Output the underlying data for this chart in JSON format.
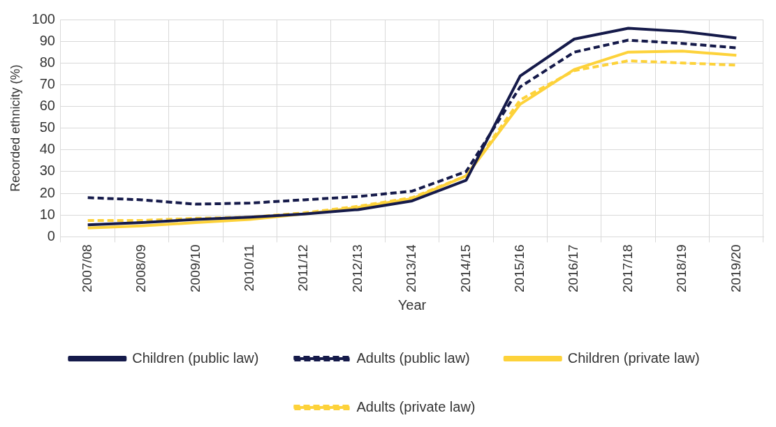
{
  "chart_data": {
    "type": "line",
    "xlabel": "Year",
    "ylabel": "Recorded ethnicity (%)",
    "categories": [
      "2007/08",
      "2008/09",
      "2009/10",
      "2010/11",
      "2011/12",
      "2012/13",
      "2013/14",
      "2014/15",
      "2015/16",
      "2016/17",
      "2017/18",
      "2018/19",
      "2019/20"
    ],
    "series": [
      {
        "name": "Children (public law)",
        "color": "#151a4a",
        "line_style": "solid",
        "values": [
          5.5,
          6.5,
          8,
          9,
          10.5,
          12.5,
          16.5,
          26,
          74,
          91,
          96,
          94.5,
          91.5
        ]
      },
      {
        "name": "Adults (public law)",
        "color": "#151a4a",
        "line_style": "dashed",
        "values": [
          18,
          17,
          15,
          15.5,
          17,
          18.5,
          21,
          30,
          69,
          85,
          90.5,
          89,
          87
        ]
      },
      {
        "name": "Children (private law)",
        "color": "#fdd23a",
        "line_style": "solid",
        "values": [
          4,
          5,
          6.5,
          8,
          10.5,
          13.5,
          17.5,
          28,
          61,
          77,
          85,
          85.5,
          83.5
        ]
      },
      {
        "name": "Adults (private law)",
        "color": "#fdd23a",
        "line_style": "dashed",
        "values": [
          7.5,
          7.5,
          8.5,
          9,
          11,
          14,
          18,
          28,
          63,
          76.5,
          81,
          80,
          79
        ]
      }
    ],
    "ylim": [
      0,
      100
    ],
    "yticks": [
      0,
      10,
      20,
      30,
      40,
      50,
      60,
      70,
      80,
      90,
      100
    ],
    "grid": true,
    "legend": "bottom",
    "marker": "none"
  }
}
